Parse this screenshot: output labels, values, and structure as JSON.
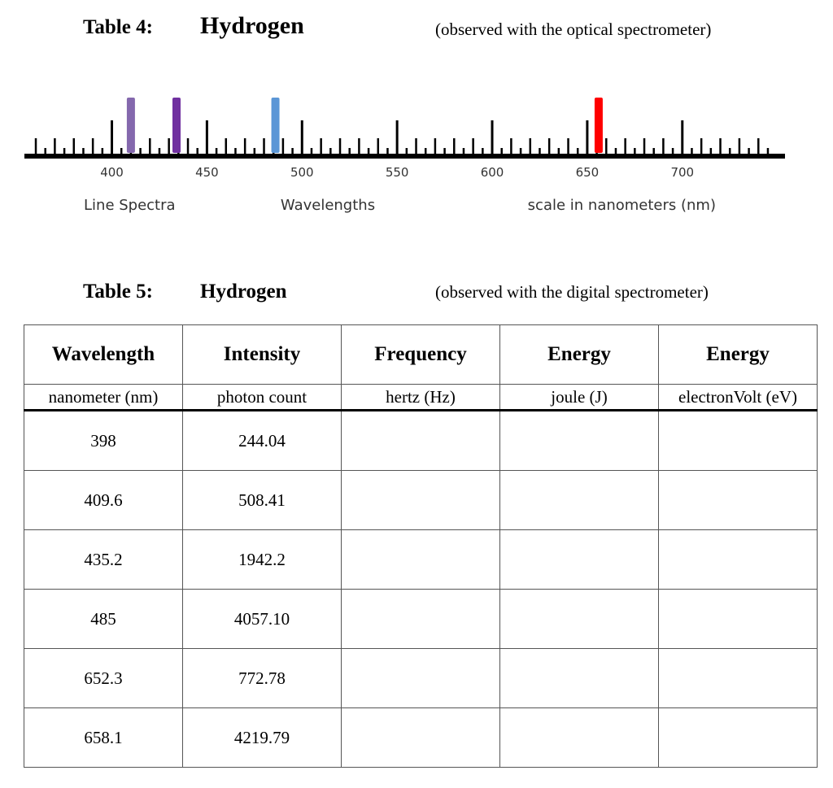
{
  "table4": {
    "label": "Table 4:",
    "element": "Hydrogen",
    "note": "(observed with the optical spectrometer)"
  },
  "spectrum": {
    "xlim": [
      354,
      754
    ],
    "ticks": [
      400,
      450,
      500,
      550,
      600,
      650,
      700
    ],
    "lines": [
      {
        "wavelength": 410,
        "color": "#8468ad"
      },
      {
        "wavelength": 434,
        "color": "#7030a0"
      },
      {
        "wavelength": 486,
        "color": "#5b96d6"
      },
      {
        "wavelength": 656,
        "color": "#ff0000"
      }
    ],
    "captions": [
      "Line Spectra",
      "Wavelengths",
      "scale in nanometers (nm)"
    ]
  },
  "table5": {
    "label": "Table 5:",
    "element": "Hydrogen",
    "note": "(observed with the digital spectrometer)"
  },
  "table": {
    "headers": [
      "Wavelength",
      "Intensity",
      "Frequency",
      "Energy",
      "Energy"
    ],
    "units": [
      "nanometer (nm)",
      "photon count",
      "hertz (Hz)",
      "joule (J)",
      "electronVolt (eV)"
    ],
    "rows": [
      [
        "398",
        "244.04"
      ],
      [
        "409.6",
        "508.41"
      ],
      [
        "435.2",
        "1942.2"
      ],
      [
        "485",
        "4057.10"
      ],
      [
        "652.3",
        "772.78"
      ],
      [
        "658.1",
        "4219.79"
      ]
    ]
  }
}
